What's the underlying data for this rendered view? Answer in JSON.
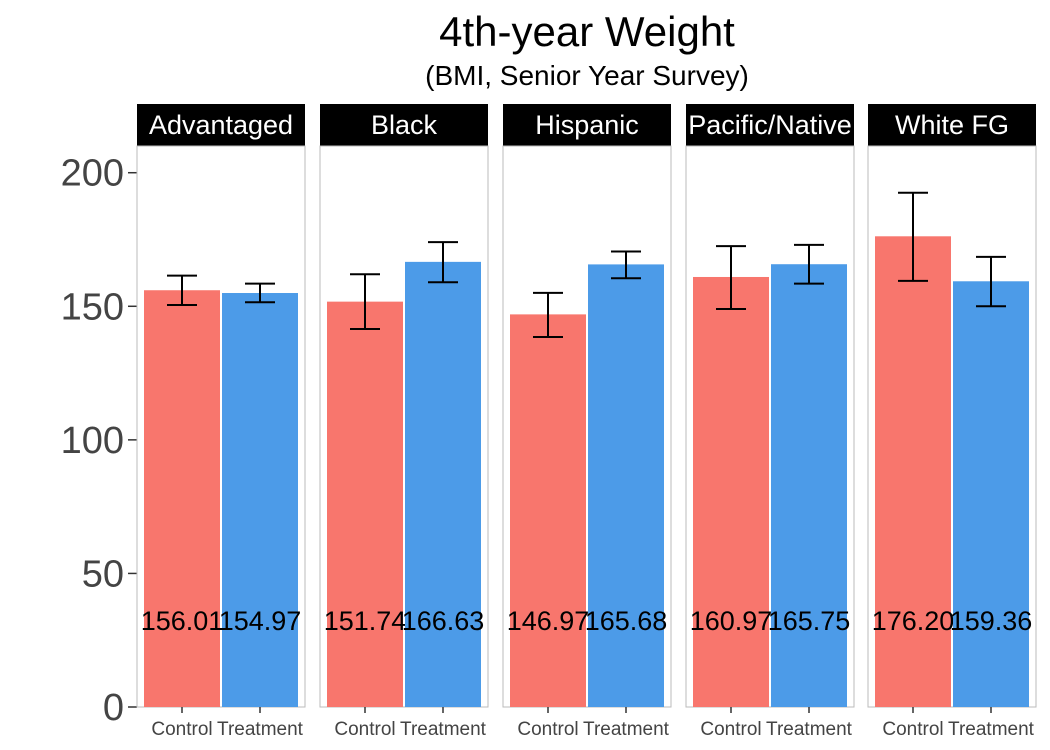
{
  "chart_data": {
    "type": "bar",
    "title": "4th-year Weight",
    "subtitle": "(BMI, Senior Year Survey)",
    "xlabel": "",
    "ylabel": "",
    "ylim": [
      0,
      210
    ],
    "yticks": [
      0,
      50,
      100,
      150,
      200
    ],
    "categories": [
      "Control",
      "Treatment"
    ],
    "colors": {
      "Control": "#F8766D",
      "Treatment": "#4C9BE8"
    },
    "grid": false,
    "facets": [
      {
        "name": "Advantaged",
        "values": [
          156.01,
          154.97
        ],
        "labels": [
          "156.01",
          "154.97"
        ],
        "error_low": [
          150.5,
          151.5
        ],
        "error_high": [
          161.5,
          158.5
        ]
      },
      {
        "name": "Black",
        "values": [
          151.74,
          166.63
        ],
        "labels": [
          "151.74",
          "166.63"
        ],
        "error_low": [
          141.5,
          159.0
        ],
        "error_high": [
          162.0,
          174.0
        ]
      },
      {
        "name": "Hispanic",
        "values": [
          146.97,
          165.68
        ],
        "labels": [
          "146.97",
          "165.68"
        ],
        "error_low": [
          138.5,
          160.5
        ],
        "error_high": [
          155.0,
          170.5
        ]
      },
      {
        "name": "Pacific/Native",
        "values": [
          160.97,
          165.75
        ],
        "labels": [
          "160.97",
          "165.75"
        ],
        "error_low": [
          149.0,
          158.5
        ],
        "error_high": [
          172.5,
          173.0
        ]
      },
      {
        "name": "White FG",
        "values": [
          176.2,
          159.36
        ],
        "labels": [
          "176.20",
          "159.36"
        ],
        "error_low": [
          159.5,
          150.0
        ],
        "error_high": [
          192.5,
          168.5
        ]
      }
    ]
  }
}
